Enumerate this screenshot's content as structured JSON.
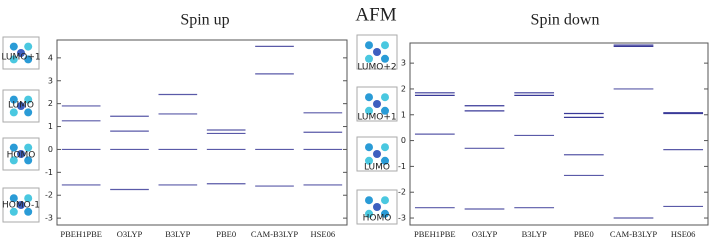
{
  "title": "AFM",
  "chart_data": [
    {
      "type": "levels",
      "title": "Spin up",
      "categories": [
        "PBEH1PBE",
        "O3LYP",
        "B3LYP",
        "PBE0",
        "CAM-B3LYP",
        "HSE06"
      ],
      "series": [
        {
          "name": "HOMO-1",
          "color": "#5a5aa8",
          "values": [
            -1.55,
            -1.75,
            -1.55,
            -1.5,
            -1.6,
            -1.55
          ]
        },
        {
          "name": "HOMO",
          "color": "#5a5aa8",
          "values": [
            0,
            0,
            0,
            0,
            0,
            0
          ]
        },
        {
          "name": "LUMO",
          "color": "#5a5aa8",
          "values": [
            1.25,
            0.8,
            1.55,
            0.7,
            3.3,
            0.75
          ]
        },
        {
          "name": "LUMO+1",
          "color": "#5a5aa8",
          "values": [
            1.9,
            1.45,
            2.4,
            0.85,
            4.5,
            1.6
          ]
        }
      ],
      "ylim": [
        -3.3,
        4.78
      ],
      "yticks": [
        -3,
        -2,
        -1,
        0,
        1,
        2,
        3,
        4
      ]
    },
    {
      "type": "levels",
      "title": "Spin down",
      "categories": [
        "PBEH1PBE",
        "O3LYP",
        "B3LYP",
        "PBE0",
        "CAM-B3LYP",
        "HSE06"
      ],
      "series": [
        {
          "name": "HOMO",
          "color": "#5a5aa8",
          "values": [
            -2.6,
            -2.65,
            -2.6,
            -1.35,
            -3.0,
            -2.55
          ]
        },
        {
          "name": "LUMO",
          "color": "#5a5aa8",
          "values": [
            0.25,
            -0.3,
            0.2,
            -0.55,
            2.0,
            -0.35
          ]
        },
        {
          "name": "LUMO+1",
          "color": "#3a3a98",
          "values": [
            1.75,
            1.15,
            1.75,
            0.9,
            3.65,
            1.05
          ]
        },
        {
          "name": "LUMO+2",
          "color": "#3a3a98",
          "values": [
            1.85,
            1.35,
            1.85,
            1.05,
            3.7,
            1.08
          ]
        }
      ],
      "ylim": [
        -3.27,
        3.78
      ],
      "yticks": [
        -3,
        -2,
        -1,
        0,
        1,
        2,
        3
      ]
    }
  ]
}
